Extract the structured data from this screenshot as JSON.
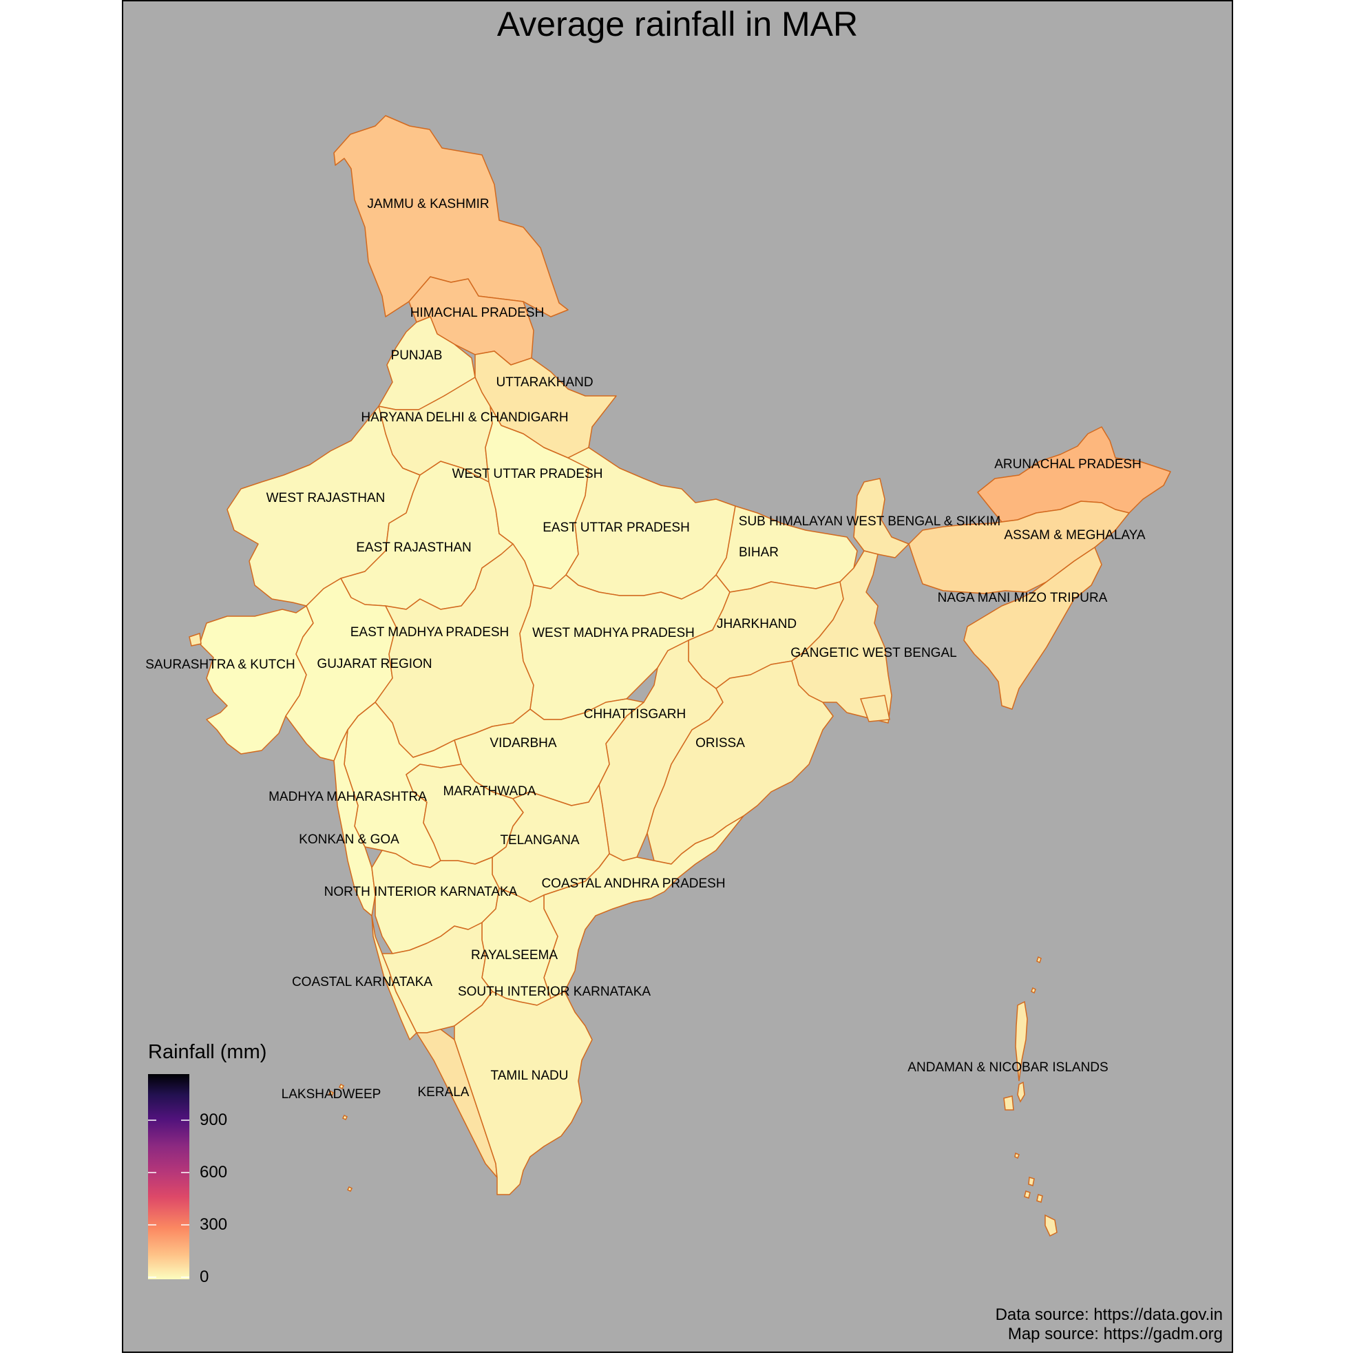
{
  "title": "Average rainfall in MAR",
  "legend": {
    "title": "Rainfall (mm)",
    "ticks": [
      "900",
      "600",
      "300",
      "0"
    ],
    "range": [
      0,
      1150
    ],
    "colors": [
      "#fcfdbf",
      "#fec287",
      "#fb8861",
      "#de4968",
      "#b73779",
      "#8c2981",
      "#51127c",
      "#221150",
      "#000004"
    ]
  },
  "caption": {
    "data_source": "Data source: https://data.gov.in",
    "map_source": "Map source: https://gadm.org"
  },
  "regions": [
    {
      "name": "JAMMU & KASHMIR",
      "rainfall_color": "#fdc58a"
    },
    {
      "name": "HIMACHAL PRADESH",
      "rainfall_color": "#fdc68c"
    },
    {
      "name": "PUNJAB",
      "rainfall_color": "#fcf6bb"
    },
    {
      "name": "UTTARAKHAND",
      "rainfall_color": "#fde6a6"
    },
    {
      "name": "HARYANA DELHI & CHANDIGARH",
      "rainfall_color": "#fcf3b6"
    },
    {
      "name": "WEST UTTAR PRADESH",
      "rainfall_color": "#fcf7bb"
    },
    {
      "name": "WEST RAJASTHAN",
      "rainfall_color": "#fdfbbf"
    },
    {
      "name": "EAST UTTAR PRADESH",
      "rainfall_color": "#fcf6ba"
    },
    {
      "name": "SUB HIMALAYAN WEST BENGAL & SIKKIM",
      "rainfall_color": "#fce8a9"
    },
    {
      "name": "ARUNACHAL PRADESH",
      "rainfall_color": "#fdb77d"
    },
    {
      "name": "ASSAM & MEGHALAYA",
      "rainfall_color": "#fdd99a"
    },
    {
      "name": "BIHAR",
      "rainfall_color": "#fcf6ba"
    },
    {
      "name": "EAST RAJASTHAN",
      "rainfall_color": "#fcf8bc"
    },
    {
      "name": "NAGA MANI MIZO TRIPURA",
      "rainfall_color": "#fde0a0"
    },
    {
      "name": "JHARKHAND",
      "rainfall_color": "#fcf1b3"
    },
    {
      "name": "EAST MADHYA PRADESH",
      "rainfall_color": "#fcf4b7"
    },
    {
      "name": "WEST MADHYA PRADESH",
      "rainfall_color": "#fcf7bb"
    },
    {
      "name": "GANGETIC WEST BENGAL",
      "rainfall_color": "#fcebad"
    },
    {
      "name": "SAURASHTRA & KUTCH",
      "rainfall_color": "#fdfcbf"
    },
    {
      "name": "GUJARAT REGION",
      "rainfall_color": "#fdfbbe"
    },
    {
      "name": "CHHATTISGARH",
      "rainfall_color": "#fcf2b5"
    },
    {
      "name": "VIDARBHA",
      "rainfall_color": "#fcf7bb"
    },
    {
      "name": "ORISSA",
      "rainfall_color": "#fcf0b2"
    },
    {
      "name": "MADHYA MAHARASHTRA",
      "rainfall_color": "#fdfabe"
    },
    {
      "name": "MARATHWADA",
      "rainfall_color": "#fcf7bb"
    },
    {
      "name": "KONKAN & GOA",
      "rainfall_color": "#fdfbbf"
    },
    {
      "name": "TELANGANA",
      "rainfall_color": "#fcf5b9"
    },
    {
      "name": "NORTH INTERIOR KARNATAKA",
      "rainfall_color": "#fcf8bc"
    },
    {
      "name": "COASTAL ANDHRA PRADESH",
      "rainfall_color": "#fcf6ba"
    },
    {
      "name": "RAYALSEEMA",
      "rainfall_color": "#fcf8bc"
    },
    {
      "name": "COASTAL KARNATAKA",
      "rainfall_color": "#fcf4b7"
    },
    {
      "name": "SOUTH INTERIOR KARNATAKA",
      "rainfall_color": "#fcf4b8"
    },
    {
      "name": "ANDAMAN & NICOBAR ISLANDS",
      "rainfall_color": "#fce9aa"
    },
    {
      "name": "TAMIL NADU",
      "rainfall_color": "#fcf3b6"
    },
    {
      "name": "LAKSHADWEEP",
      "rainfall_color": "#fcf2b4"
    },
    {
      "name": "KERALA",
      "rainfall_color": "#fce2a3"
    }
  ],
  "border_color": "#d2691e",
  "background_color": "#ababab"
}
